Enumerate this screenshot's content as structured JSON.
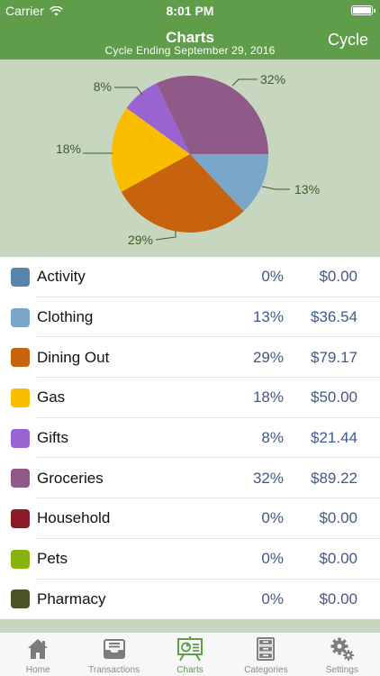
{
  "status_bar": {
    "carrier": "Carrier",
    "time": "8:01 PM"
  },
  "nav": {
    "title": "Charts",
    "subtitle": "Cycle Ending September 29, 2016",
    "right_button": "Cycle"
  },
  "chart_data": {
    "type": "pie",
    "slices": [
      {
        "label": "13%",
        "value": 13,
        "color": "#79a6c9"
      },
      {
        "label": "29%",
        "value": 29,
        "color": "#c7620f"
      },
      {
        "label": "18%",
        "value": 18,
        "color": "#fbbd00"
      },
      {
        "label": "8%",
        "value": 8,
        "color": "#9a63d2"
      },
      {
        "label": "32%",
        "value": 32,
        "color": "#8f5a87"
      }
    ]
  },
  "categories": [
    {
      "name": "Activity",
      "pct": "0%",
      "amount": "$0.00",
      "color": "#5785ad"
    },
    {
      "name": "Clothing",
      "pct": "13%",
      "amount": "$36.54",
      "color": "#79a6c9"
    },
    {
      "name": "Dining Out",
      "pct": "29%",
      "amount": "$79.17",
      "color": "#c7620f"
    },
    {
      "name": "Gas",
      "pct": "18%",
      "amount": "$50.00",
      "color": "#fbbd00"
    },
    {
      "name": "Gifts",
      "pct": "8%",
      "amount": "$21.44",
      "color": "#9a63d2"
    },
    {
      "name": "Groceries",
      "pct": "32%",
      "amount": "$89.22",
      "color": "#8f5a87"
    },
    {
      "name": "Household",
      "pct": "0%",
      "amount": "$0.00",
      "color": "#8a1a26"
    },
    {
      "name": "Pets",
      "pct": "0%",
      "amount": "$0.00",
      "color": "#88b20c"
    },
    {
      "name": "Pharmacy",
      "pct": "0%",
      "amount": "$0.00",
      "color": "#4a5322"
    }
  ],
  "tabs": [
    {
      "label": "Home",
      "icon": "house-icon"
    },
    {
      "label": "Transactions",
      "icon": "inbox-tray-icon"
    },
    {
      "label": "Charts",
      "icon": "chart-board-icon",
      "active": true
    },
    {
      "label": "Categories",
      "icon": "file-cabinet-icon"
    },
    {
      "label": "Settings",
      "icon": "gears-icon"
    }
  ],
  "colors": {
    "accent": "#5f9d4a",
    "chart_bg": "#c7d7bf",
    "value_text": "#3f5a89",
    "tab_inactive": "#8a8a8a"
  }
}
